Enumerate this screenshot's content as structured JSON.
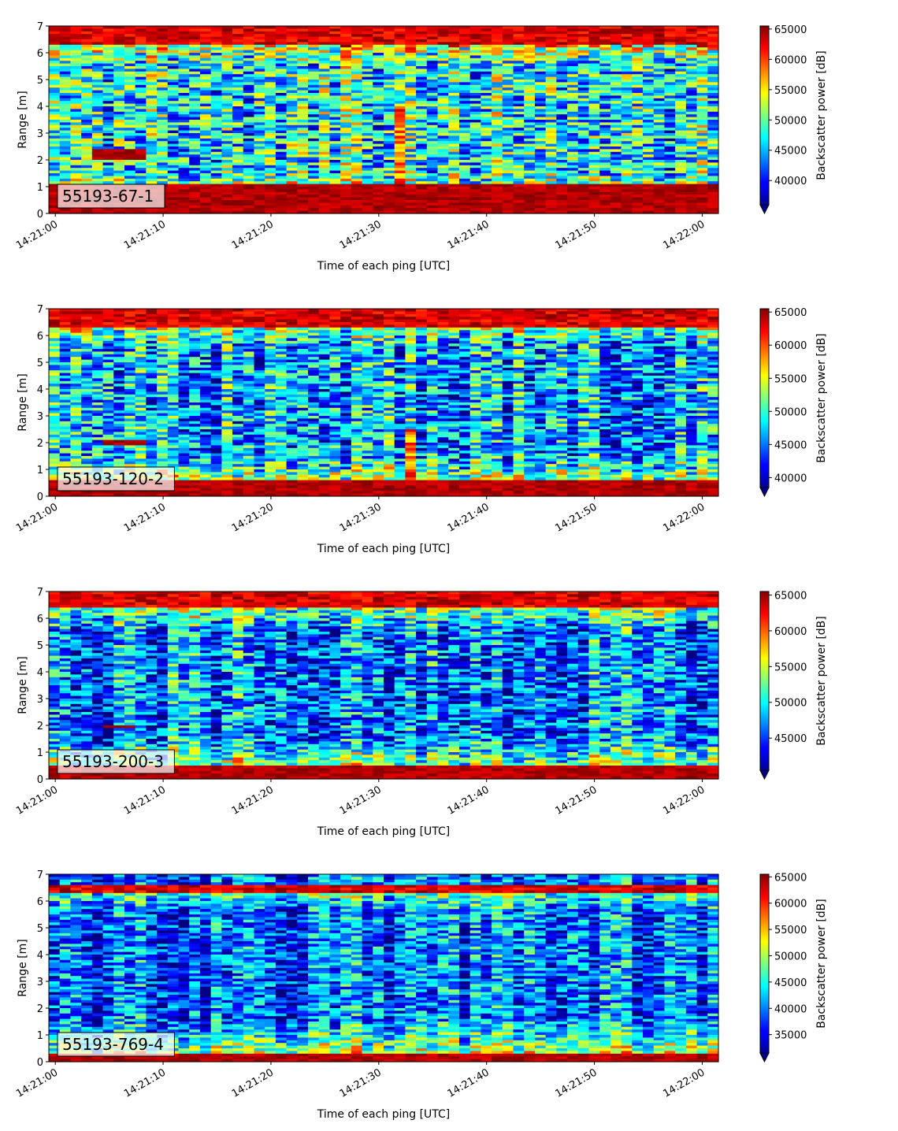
{
  "chart_data": [
    {
      "type": "heatmap",
      "label": "55193-67-1",
      "xlabel": "Time of each ping [UTC]",
      "ylabel": "Range [m]",
      "x_ticks": [
        "14:21:00",
        "14:21:10",
        "14:21:20",
        "14:21:30",
        "14:21:40",
        "14:21:50",
        "14:22:00"
      ],
      "y_ticks": [
        0,
        1,
        2,
        3,
        4,
        5,
        6,
        7
      ],
      "xlim": [
        "14:21:00",
        "14:22:00"
      ],
      "ylim": [
        0,
        7
      ],
      "colorbar": {
        "label": "Backscatter power [dB]",
        "min": 36000,
        "max": 65500,
        "ticks": [
          40000,
          45000,
          50000,
          55000,
          60000,
          65000
        ],
        "extend": "min",
        "colormap": "jet"
      },
      "features": {
        "bottom_echo_m": [
          0,
          1.05
        ],
        "surface_echo_m": [
          6.35,
          7
        ],
        "high_echo_patch": {
          "time": [
            "14:21:03",
            "14:21:08"
          ],
          "range_m": [
            2.0,
            2.4
          ]
        },
        "vertical_streak": {
          "time": "14:21:32",
          "range_m": [
            0.9,
            4.0
          ]
        }
      }
    },
    {
      "type": "heatmap",
      "label": "55193-120-2",
      "xlabel": "Time of each ping [UTC]",
      "ylabel": "Range [m]",
      "x_ticks": [
        "14:21:00",
        "14:21:10",
        "14:21:20",
        "14:21:30",
        "14:21:40",
        "14:21:50",
        "14:22:00"
      ],
      "y_ticks": [
        0,
        1,
        2,
        3,
        4,
        5,
        6,
        7
      ],
      "xlim": [
        "14:21:00",
        "14:22:00"
      ],
      "ylim": [
        0,
        7
      ],
      "colorbar": {
        "label": "Backscatter power [dB]",
        "min": 38500,
        "max": 65500,
        "ticks": [
          40000,
          45000,
          50000,
          55000,
          60000,
          65000
        ],
        "extend": "min",
        "colormap": "jet"
      },
      "features": {
        "bottom_echo_m": [
          0,
          0.6
        ],
        "surface_echo_m": [
          6.3,
          7
        ],
        "high_echo_patch": {
          "time": [
            "14:21:04",
            "14:21:08"
          ],
          "range_m": [
            1.85,
            2.05
          ]
        },
        "vertical_streak": {
          "time": "14:21:33",
          "range_m": [
            0.2,
            2.5
          ]
        }
      }
    },
    {
      "type": "heatmap",
      "label": "55193-200-3",
      "xlabel": "Time of each ping [UTC]",
      "ylabel": "Range [m]",
      "x_ticks": [
        "14:21:00",
        "14:21:10",
        "14:21:20",
        "14:21:30",
        "14:21:40",
        "14:21:50",
        "14:22:00"
      ],
      "y_ticks": [
        0,
        1,
        2,
        3,
        4,
        5,
        6,
        7
      ],
      "xlim": [
        "14:21:00",
        "14:22:00"
      ],
      "ylim": [
        0,
        7
      ],
      "colorbar": {
        "label": "Backscatter power [dB]",
        "min": 40500,
        "max": 65500,
        "ticks": [
          45000,
          50000,
          55000,
          60000,
          65000
        ],
        "extend": "min",
        "colormap": "jet"
      },
      "features": {
        "bottom_echo_m": [
          0,
          0.5
        ],
        "surface_echo_m": [
          6.4,
          7
        ],
        "high_echo_patch": {
          "time": [
            "14:21:04",
            "14:21:07"
          ],
          "range_m": [
            1.85,
            2.0
          ]
        }
      }
    },
    {
      "type": "heatmap",
      "label": "55193-769-4",
      "xlabel": "Time of each ping [UTC]",
      "ylabel": "Range [m]",
      "x_ticks": [
        "14:21:00",
        "14:21:10",
        "14:21:20",
        "14:21:30",
        "14:21:40",
        "14:21:50",
        "14:22:00"
      ],
      "y_ticks": [
        0,
        1,
        2,
        3,
        4,
        5,
        6,
        7
      ],
      "xlim": [
        "14:21:00",
        "14:22:00"
      ],
      "ylim": [
        0,
        7
      ],
      "colorbar": {
        "label": "Backscatter power [dB]",
        "min": 31500,
        "max": 65500,
        "ticks": [
          35000,
          40000,
          45000,
          50000,
          55000,
          60000,
          65000
        ],
        "extend": "min",
        "colormap": "jet"
      },
      "features": {
        "bottom_echo_m": [
          0,
          0.3
        ],
        "surface_echo_m": [
          6.35,
          6.6
        ]
      }
    }
  ]
}
